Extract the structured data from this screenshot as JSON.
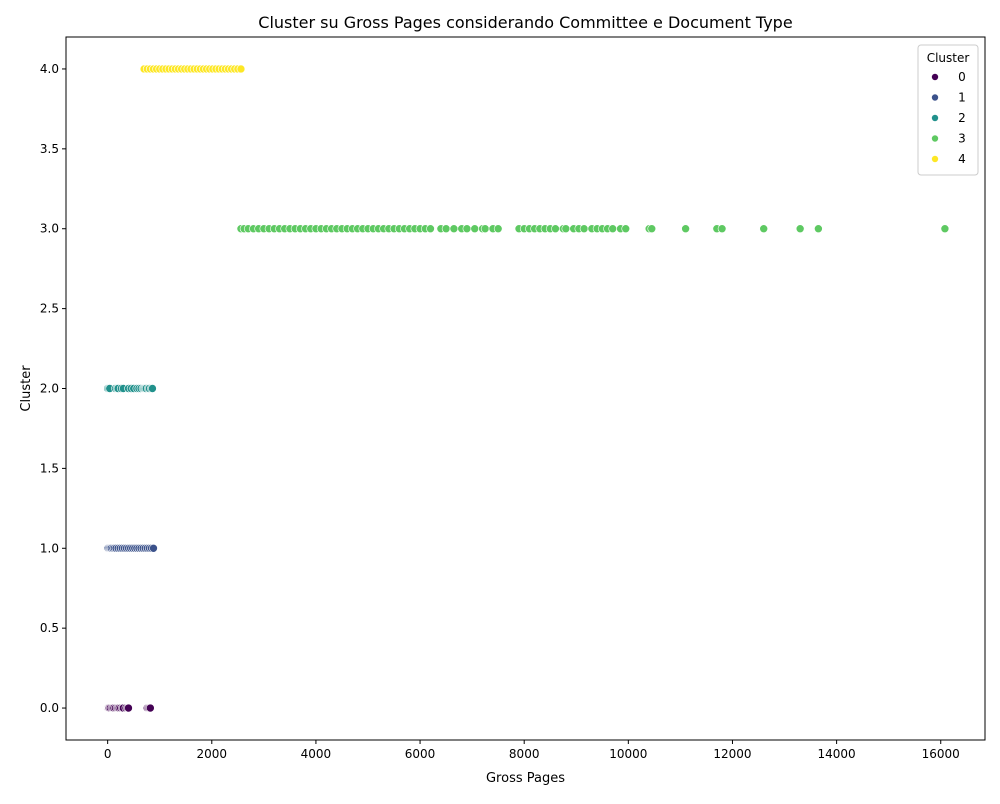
{
  "chart_data": {
    "type": "scatter",
    "title": "Cluster su Gross Pages considerando Committee e Document Type",
    "xlabel": "Gross Pages",
    "ylabel": "Cluster",
    "xlim": [
      -800,
      16850
    ],
    "ylim": [
      -0.2,
      4.2
    ],
    "xticks": [
      0,
      2000,
      4000,
      6000,
      8000,
      10000,
      12000,
      14000,
      16000
    ],
    "yticks": [
      0.0,
      0.5,
      1.0,
      1.5,
      2.0,
      2.5,
      3.0,
      3.5,
      4.0
    ],
    "xtick_labels": [
      "0",
      "2000",
      "4000",
      "6000",
      "8000",
      "10000",
      "12000",
      "14000",
      "16000"
    ],
    "ytick_labels": [
      "0.0",
      "0.5",
      "1.0",
      "1.5",
      "2.0",
      "2.5",
      "3.0",
      "3.5",
      "4.0"
    ],
    "grid": false,
    "legend": {
      "title": "Cluster",
      "placement": "top-right",
      "entries": [
        "0",
        "1",
        "2",
        "3",
        "4"
      ]
    },
    "colors": {
      "0": "#440154",
      "1": "#3b528b",
      "2": "#21918c",
      "3": "#5ec962",
      "4": "#fde725"
    },
    "series": [
      {
        "name": "0",
        "y": 0,
        "x": [
          0,
          5,
          10,
          20,
          30,
          50,
          80,
          100,
          120,
          150,
          180,
          200,
          220,
          250,
          280,
          300,
          350,
          380,
          400,
          760,
          780,
          800,
          820
        ]
      },
      {
        "name": "1",
        "y": 1,
        "x": [
          0,
          10,
          30,
          50,
          70,
          100,
          130,
          160,
          200,
          240,
          280,
          320,
          360,
          400,
          440,
          480,
          520,
          560,
          600,
          640,
          680,
          720,
          760,
          800,
          840,
          880
        ]
      },
      {
        "name": "2",
        "y": 2,
        "x": [
          0,
          20,
          40,
          150,
          180,
          200,
          260,
          300,
          400,
          450,
          500,
          560,
          600,
          640,
          680,
          700,
          720,
          740,
          780,
          800,
          840,
          860
        ]
      },
      {
        "name": "3",
        "y": 3,
        "x": [
          2560,
          2620,
          2700,
          2800,
          2900,
          3000,
          3100,
          3200,
          3300,
          3400,
          3500,
          3600,
          3700,
          3800,
          3900,
          4000,
          4100,
          4200,
          4300,
          4400,
          4500,
          4600,
          4700,
          4800,
          4900,
          5000,
          5100,
          5200,
          5300,
          5400,
          5500,
          5600,
          5700,
          5800,
          5900,
          6000,
          6100,
          6200,
          6400,
          6500,
          6650,
          6800,
          6900,
          7050,
          7200,
          7250,
          7400,
          7500,
          7900,
          8000,
          8100,
          8200,
          8300,
          8400,
          8500,
          8600,
          8750,
          8800,
          8950,
          9050,
          9150,
          9300,
          9400,
          9500,
          9600,
          9700,
          9850,
          9950,
          10400,
          10450,
          11100,
          11700,
          11800,
          12600,
          13300,
          13650,
          16080
        ]
      },
      {
        "name": "4",
        "y": 4,
        "x": [
          700,
          760,
          820,
          880,
          940,
          1000,
          1060,
          1120,
          1180,
          1240,
          1300,
          1360,
          1420,
          1480,
          1540,
          1600,
          1660,
          1720,
          1780,
          1840,
          1900,
          1960,
          2020,
          2080,
          2140,
          2200,
          2260,
          2320,
          2380,
          2440,
          2500,
          2560
        ]
      }
    ]
  }
}
